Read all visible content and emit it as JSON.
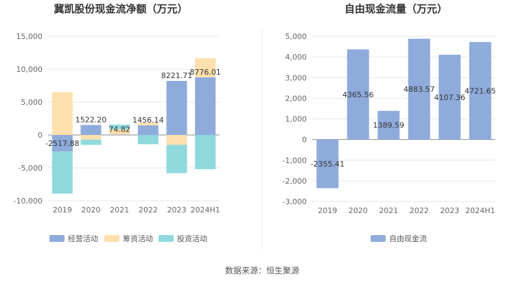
{
  "source_text": "数据来源：恒生聚源",
  "chart_data": [
    {
      "type": "bar",
      "stacked": true,
      "title": "冀凯股份现金流净额（万元）",
      "categories": [
        "2019",
        "2020",
        "2021",
        "2022",
        "2023",
        "2024H1"
      ],
      "ylim": [
        -10000,
        15000
      ],
      "yticks": [
        15000,
        10000,
        5000,
        0,
        -5000,
        -10000
      ],
      "ytick_labels": [
        "15,000",
        "10,000",
        "5,000",
        "0",
        "-5,000",
        "-10,000"
      ],
      "grid": true,
      "legend_position": "bottom",
      "series": [
        {
          "name": "经营活动",
          "color": "#8eabdb",
          "values": [
            -2517.88,
            1522.2,
            74.82,
            1456.14,
            8221.71,
            8776.01
          ]
        },
        {
          "name": "筹资活动",
          "color": "#fde0ad",
          "values": [
            6500,
            -700,
            800,
            400,
            -1500,
            2900
          ]
        },
        {
          "name": "投资活动",
          "color": "#8fd9dd",
          "values": [
            -6400,
            -800,
            700,
            -1400,
            -4300,
            -5200
          ]
        }
      ],
      "data_labels": [
        "-2517.88",
        "1522.20",
        "74.82",
        "1456.14",
        "8221.71",
        "8776.01"
      ]
    },
    {
      "type": "bar",
      "title": "自由现金流量（万元）",
      "categories": [
        "2019",
        "2020",
        "2021",
        "2022",
        "2023",
        "2024H1"
      ],
      "ylim": [
        -3000,
        5000
      ],
      "yticks": [
        5000,
        4000,
        3000,
        2000,
        1000,
        0,
        -1000,
        -2000,
        -3000
      ],
      "ytick_labels": [
        "5,000",
        "4,000",
        "3,000",
        "2,000",
        "1,000",
        "0",
        "-1,000",
        "-2,000",
        "-3,000"
      ],
      "grid": true,
      "legend_position": "bottom",
      "series": [
        {
          "name": "自由现金流",
          "color": "#8eabdb",
          "values": [
            -2355.41,
            4365.56,
            1389.59,
            4883.57,
            4107.36,
            4721.65
          ]
        }
      ],
      "data_labels": [
        "-2355.41",
        "4365.56",
        "1389.59",
        "4883.57",
        "4107.36",
        "4721.65"
      ]
    }
  ]
}
